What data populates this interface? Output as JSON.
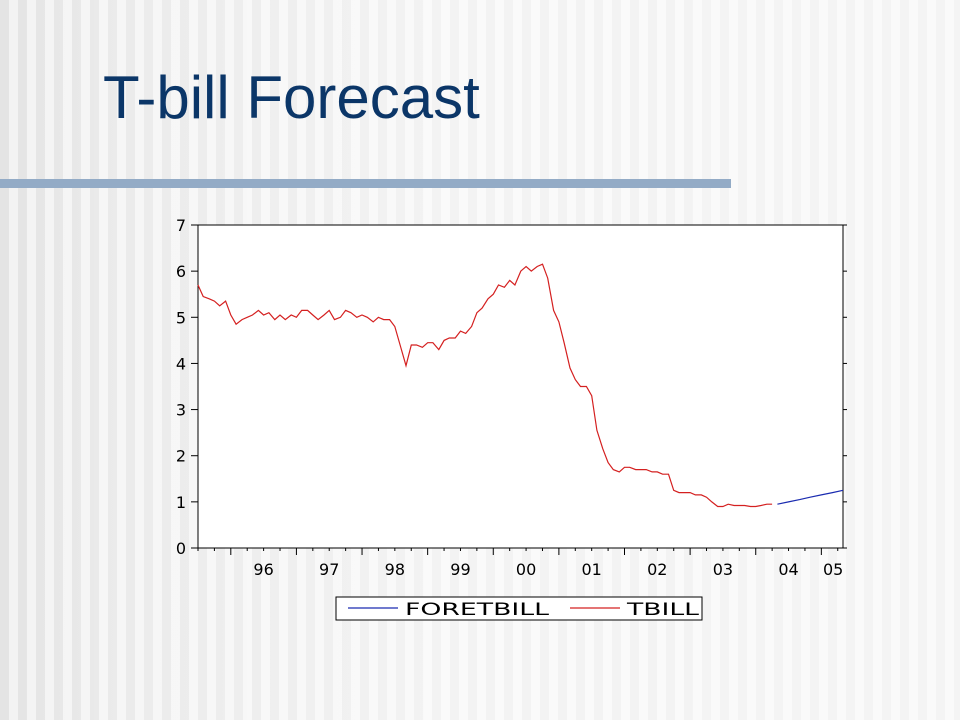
{
  "slide": {
    "title": "T-bill Forecast"
  },
  "chart_data": {
    "type": "line",
    "title": "",
    "xlabel": "",
    "ylabel": "",
    "x_tick_labels": [
      "96",
      "97",
      "98",
      "99",
      "00",
      "01",
      "02",
      "03",
      "04",
      "05"
    ],
    "y_tick_labels": [
      "0",
      "1",
      "2",
      "3",
      "4",
      "5",
      "6",
      "7"
    ],
    "xlim": [
      1995.5,
      2005.33
    ],
    "ylim": [
      0,
      7
    ],
    "grid": false,
    "legend_position": "bottom",
    "series": [
      {
        "name": "FORETBILL",
        "color": "#1a2bb0",
        "x": [
          2004.33,
          2004.5,
          2004.67,
          2004.83,
          2005.0,
          2005.17,
          2005.33
        ],
        "y": [
          0.95,
          1.0,
          1.05,
          1.1,
          1.15,
          1.2,
          1.25
        ]
      },
      {
        "name": "TBILL",
        "color": "#d42020",
        "x": [
          1995.5,
          1995.58,
          1995.67,
          1995.75,
          1995.83,
          1995.92,
          1996.0,
          1996.08,
          1996.17,
          1996.25,
          1996.33,
          1996.42,
          1996.5,
          1996.58,
          1996.67,
          1996.75,
          1996.83,
          1996.92,
          1997.0,
          1997.08,
          1997.17,
          1997.25,
          1997.33,
          1997.42,
          1997.5,
          1997.58,
          1997.67,
          1997.75,
          1997.83,
          1997.92,
          1998.0,
          1998.08,
          1998.17,
          1998.25,
          1998.33,
          1998.42,
          1998.5,
          1998.58,
          1998.67,
          1998.75,
          1998.83,
          1998.92,
          1999.0,
          1999.08,
          1999.17,
          1999.25,
          1999.33,
          1999.42,
          1999.5,
          1999.58,
          1999.67,
          1999.75,
          1999.83,
          1999.92,
          2000.0,
          2000.08,
          2000.17,
          2000.25,
          2000.33,
          2000.42,
          2000.5,
          2000.58,
          2000.67,
          2000.75,
          2000.83,
          2000.92,
          2001.0,
          2001.08,
          2001.17,
          2001.25,
          2001.33,
          2001.42,
          2001.5,
          2001.58,
          2001.67,
          2001.75,
          2001.83,
          2001.92,
          2002.0,
          2002.08,
          2002.17,
          2002.25,
          2002.33,
          2002.42,
          2002.5,
          2002.58,
          2002.67,
          2002.75,
          2002.83,
          2002.92,
          2003.0,
          2003.08,
          2003.17,
          2003.25,
          2003.33,
          2003.42,
          2003.5,
          2003.58,
          2003.67,
          2003.75,
          2003.83,
          2003.92,
          2004.0,
          2004.08,
          2004.17,
          2004.25
        ],
        "y": [
          5.7,
          5.45,
          5.4,
          5.35,
          5.25,
          5.35,
          5.05,
          4.85,
          4.95,
          5.0,
          5.05,
          5.15,
          5.05,
          5.1,
          4.95,
          5.05,
          4.95,
          5.05,
          5.0,
          5.15,
          5.15,
          5.05,
          4.95,
          5.05,
          5.15,
          4.95,
          5.0,
          5.15,
          5.1,
          5.0,
          5.05,
          5.0,
          4.9,
          5.0,
          4.95,
          4.95,
          4.8,
          4.4,
          3.95,
          4.4,
          4.4,
          4.35,
          4.45,
          4.45,
          4.3,
          4.5,
          4.55,
          4.55,
          4.7,
          4.65,
          4.8,
          5.1,
          5.2,
          5.4,
          5.5,
          5.7,
          5.65,
          5.8,
          5.7,
          6.0,
          6.1,
          6.0,
          6.1,
          6.15,
          5.85,
          5.15,
          4.9,
          4.45,
          3.9,
          3.65,
          3.5,
          3.5,
          3.3,
          2.55,
          2.15,
          1.85,
          1.7,
          1.65,
          1.75,
          1.75,
          1.7,
          1.7,
          1.7,
          1.65,
          1.65,
          1.6,
          1.6,
          1.25,
          1.2,
          1.2,
          1.2,
          1.15,
          1.15,
          1.1,
          1.0,
          0.9,
          0.9,
          0.95,
          0.92,
          0.92,
          0.92,
          0.9,
          0.9,
          0.92,
          0.95,
          0.95
        ]
      }
    ]
  }
}
